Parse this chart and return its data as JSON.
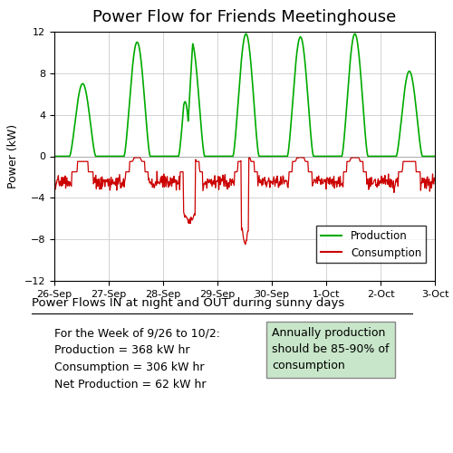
{
  "title": "Power Flow for Friends Meetinghouse",
  "ylabel": "Power (kW)",
  "ylim": [
    -12,
    12
  ],
  "yticks": [
    -12,
    -8,
    -4,
    0,
    4,
    8,
    12
  ],
  "xlim_days": [
    0,
    7
  ],
  "date_labels": [
    "26-Sep",
    "27-Sep",
    "28-Sep",
    "29-Sep",
    "30-Sep",
    "1-Oct",
    "2-Oct",
    "3-Oct"
  ],
  "production_color": "#00aa00",
  "consumption_color": "#cc0000",
  "subtitle": "Power Flows IN at night and OUT during sunny days",
  "text_lines": [
    "For the Week of 9/26 to 10/2:",
    "Production = 368 kW hr",
    "Consumption = 306 kW hr",
    "Net Production = 62 kW hr"
  ],
  "box_text": "Annually production\nshould be 85-90% of\nconsumption",
  "box_color": "#c8e6c9",
  "legend_labels": [
    "Production",
    "Consumption"
  ],
  "grid_color": "#cccccc",
  "background_color": "#ffffff"
}
